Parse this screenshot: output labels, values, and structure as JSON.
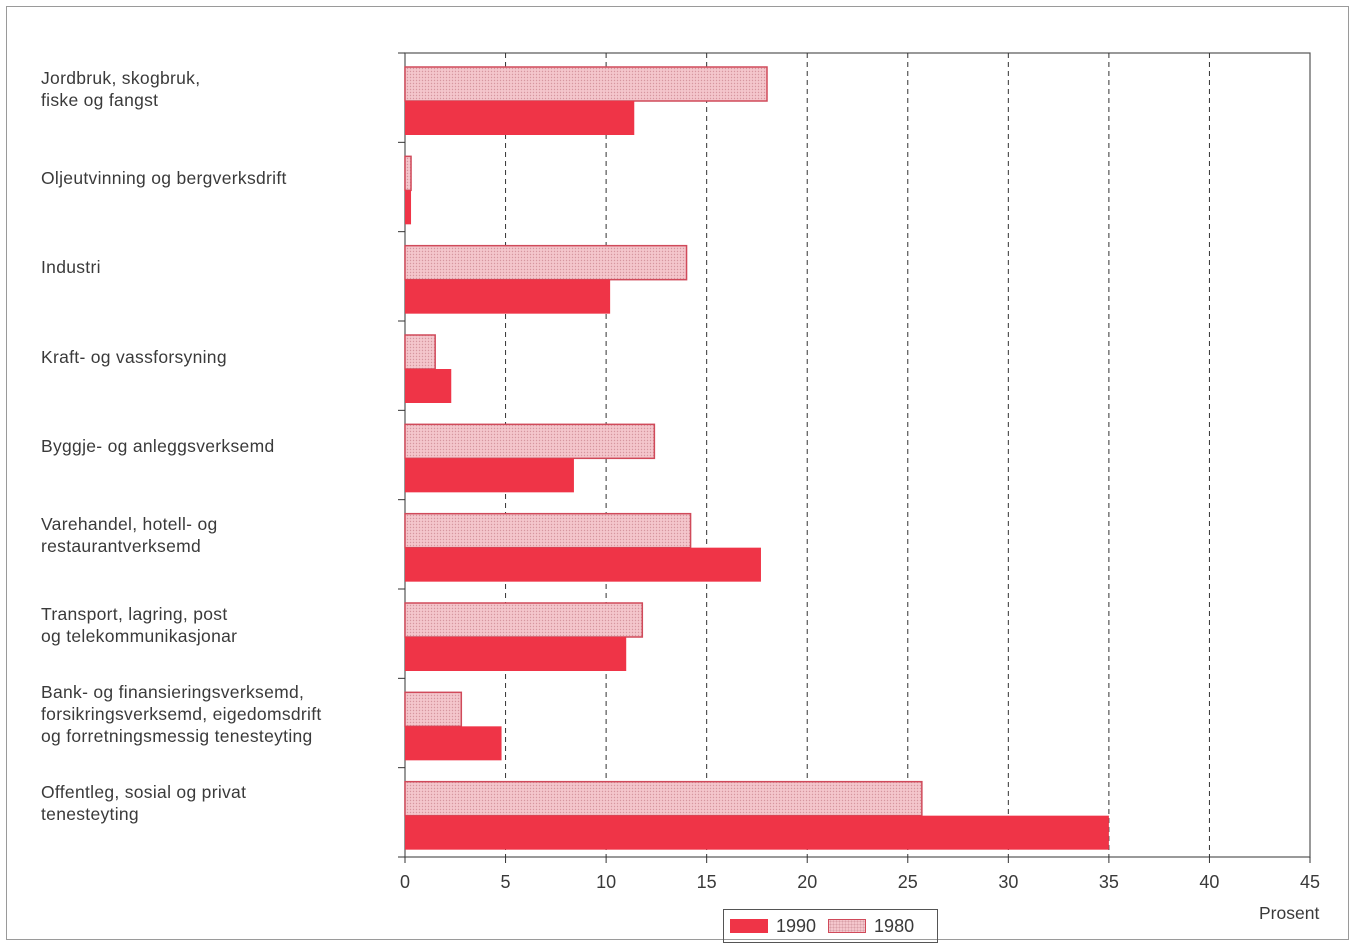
{
  "chart_data": {
    "type": "bar",
    "orientation": "horizontal",
    "categories": [
      "Jordbruk, skogbruk,\nfiske og fangst",
      "Oljeutvinning og bergverksdrift",
      "Industri",
      "Kraft- og vassforsyning",
      "Byggje- og anleggsverksemd",
      "Varehandel, hotell- og\nrestaurantverksemd",
      "Transport, lagring, post\nog telekommunikasjonar",
      "Bank- og finansieringsverksemd,\nforsikringsverksemd, eigedomsdrift\nog forretningsmessig tenesteyting",
      "Offentleg, sosial og privat\ntenesteyting"
    ],
    "series": [
      {
        "name": "1980",
        "values": [
          18.0,
          0.3,
          14.0,
          1.5,
          12.4,
          14.2,
          11.8,
          2.8,
          25.7
        ],
        "color": "#f4c6cc",
        "pattern": "dotted"
      },
      {
        "name": "1990",
        "values": [
          11.4,
          0.3,
          10.2,
          2.3,
          8.4,
          17.7,
          11.0,
          4.8,
          35.0
        ],
        "color": "#ef3447"
      }
    ],
    "xlim": [
      0,
      45
    ],
    "xticks": [
      0,
      5,
      10,
      15,
      20,
      25,
      30,
      35,
      40,
      45
    ],
    "xlabel": "Prosent",
    "grid": "vertical dashed",
    "legend_order": [
      "1990",
      "1980"
    ],
    "legend_position": "bottom-center"
  }
}
